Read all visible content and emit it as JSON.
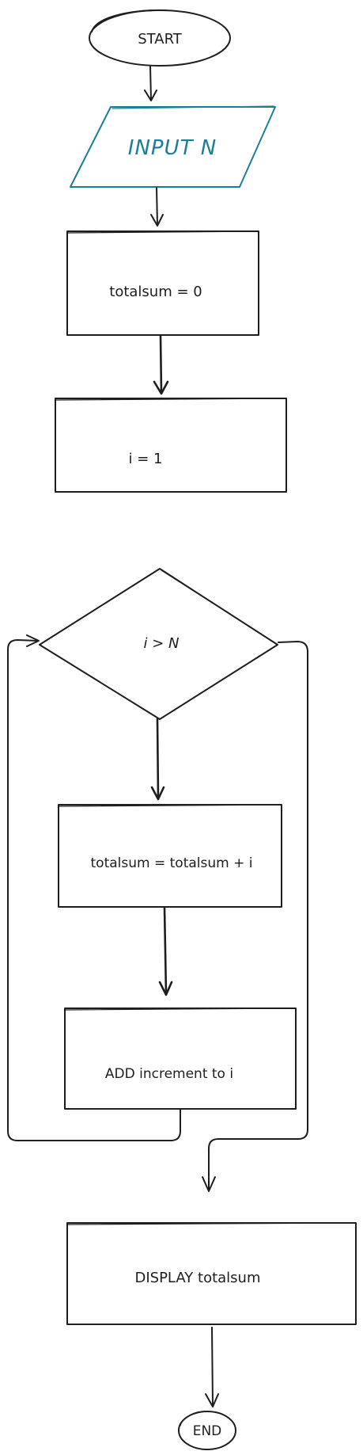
{
  "diagram": {
    "accent_color": "#1a7f96",
    "ink_color": "#1e1e1e",
    "nodes": {
      "start": "START",
      "input": "INPUT N",
      "init_sum": "totalsum = 0",
      "init_i": "i = 1",
      "condition": "i > N",
      "accumulate": "totalsum = totalsum + i",
      "increment": "ADD increment to i",
      "display": "DISPLAY totalsum",
      "end": "END"
    }
  }
}
